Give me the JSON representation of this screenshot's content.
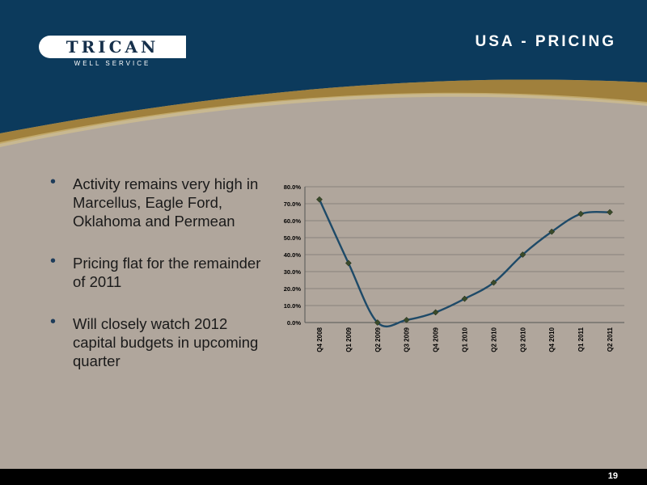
{
  "logo": {
    "name": "TRICAN",
    "tagline": "WELL   SERVICE"
  },
  "slide": {
    "title": "USA - PRICING",
    "page_number": "19"
  },
  "bullets": [
    "Activity remains very high in Marcellus, Eagle Ford, Oklahoma and Permean",
    "Pricing flat for the remainder of 2011",
    "Will closely watch 2012 capital budgets in upcoming quarter"
  ],
  "colors": {
    "header": "#0c3a5c",
    "gold_band": "#a0803c",
    "background": "#b0a69c",
    "line": "#1e4a68",
    "marker": "#3a4a2a"
  },
  "chart_data": {
    "type": "line",
    "categories": [
      "Q4 2008",
      "Q1 2009",
      "Q2 2009",
      "Q3 2009",
      "Q4 2009",
      "Q1 2010",
      "Q2 2010",
      "Q3 2010",
      "Q4 2010",
      "Q1 2011",
      "Q2 2011"
    ],
    "values": [
      72.5,
      35.0,
      0.0,
      1.5,
      6.0,
      14.0,
      23.5,
      40.0,
      53.5,
      64.0,
      65.0
    ],
    "ylim": [
      0,
      80
    ],
    "yticks": [
      "0.0%",
      "10.0%",
      "20.0%",
      "30.0%",
      "40.0%",
      "50.0%",
      "60.0%",
      "70.0%",
      "80.0%"
    ],
    "grid": true,
    "legend": "none"
  }
}
